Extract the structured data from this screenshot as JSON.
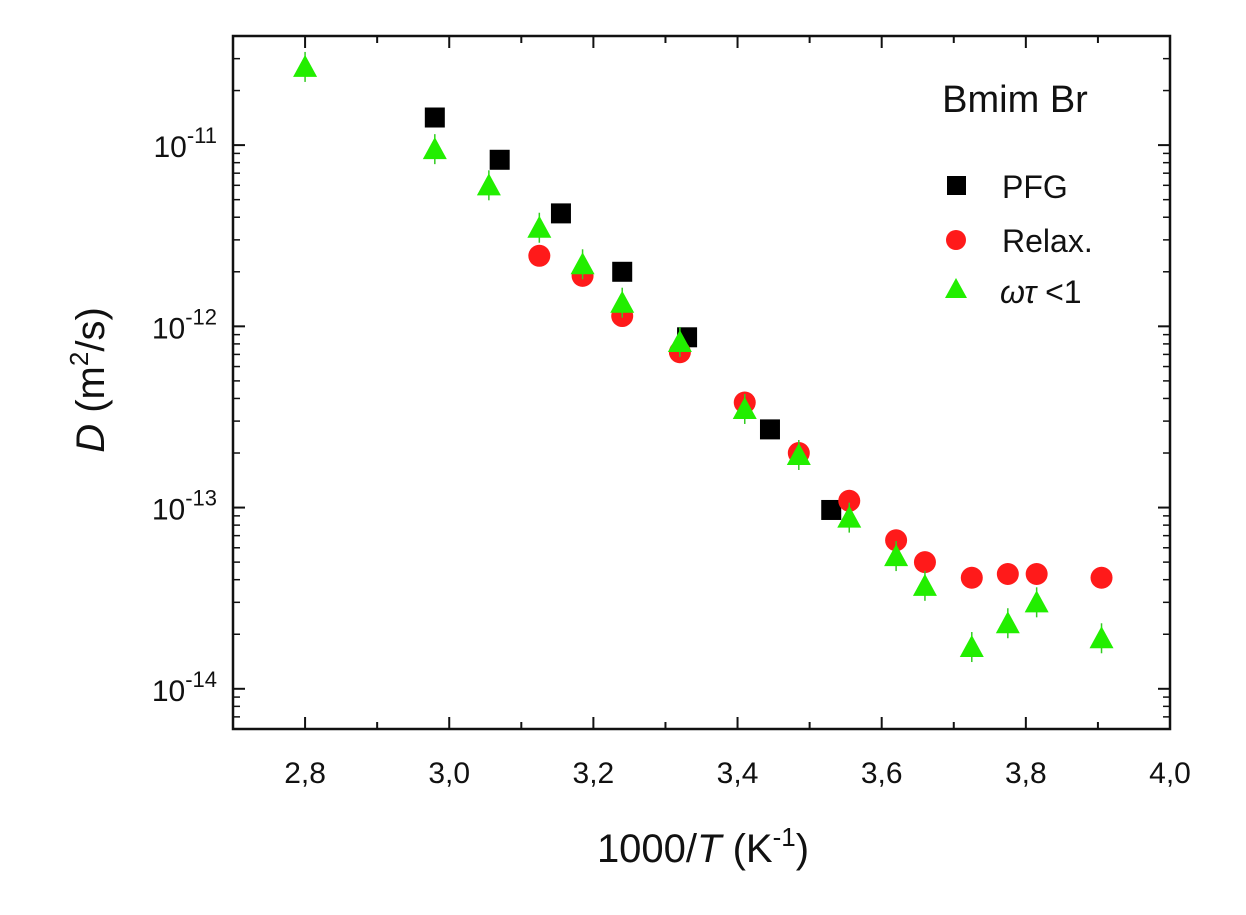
{
  "chart_data": {
    "type": "scatter",
    "annotation": "Bmim Br",
    "xlabel": {
      "prefix": "1000/",
      "italic": "T",
      "unit_open": " (K",
      "unit_sup": "-1",
      "unit_close": ")"
    },
    "ylabel": {
      "italic": "D",
      "unit_open": " (m",
      "unit_sup": "2",
      "unit_close": "/s)"
    },
    "x_scale": "linear",
    "y_scale": "log",
    "xlim": [
      2.7,
      4.0
    ],
    "ylim": [
      6e-15,
      4e-11
    ],
    "x_ticks": [
      {
        "value": 2.8,
        "label": "2,8"
      },
      {
        "value": 3.0,
        "label": "3,0"
      },
      {
        "value": 3.2,
        "label": "3,2"
      },
      {
        "value": 3.4,
        "label": "3,4"
      },
      {
        "value": 3.6,
        "label": "3,6"
      },
      {
        "value": 3.8,
        "label": "3,8"
      },
      {
        "value": 4.0,
        "label": "4,0"
      }
    ],
    "y_ticks": [
      {
        "value": 1e-11,
        "base": "10",
        "exp": "-11"
      },
      {
        "value": 1e-12,
        "base": "10",
        "exp": "-12"
      },
      {
        "value": 1e-13,
        "base": "10",
        "exp": "-13"
      },
      {
        "value": 1e-14,
        "base": "10",
        "exp": "-14"
      }
    ],
    "grid": false,
    "legend_position": "top-right",
    "series": [
      {
        "name": "PFG",
        "marker": "square",
        "color": "#000000",
        "points": [
          {
            "x": 2.98,
            "y": 1.42e-11
          },
          {
            "x": 3.07,
            "y": 8.3e-12
          },
          {
            "x": 3.155,
            "y": 4.2e-12
          },
          {
            "x": 3.24,
            "y": 2e-12
          },
          {
            "x": 3.33,
            "y": 8.7e-13
          },
          {
            "x": 3.445,
            "y": 2.7e-13
          },
          {
            "x": 3.53,
            "y": 9.7e-14
          }
        ]
      },
      {
        "name": "Relax.",
        "marker": "circle",
        "color": "#ff1a1a",
        "points": [
          {
            "x": 3.125,
            "y": 2.45e-12
          },
          {
            "x": 3.185,
            "y": 1.9e-12
          },
          {
            "x": 3.24,
            "y": 1.14e-12
          },
          {
            "x": 3.32,
            "y": 7.2e-13
          },
          {
            "x": 3.41,
            "y": 3.8e-13
          },
          {
            "x": 3.485,
            "y": 2e-13
          },
          {
            "x": 3.555,
            "y": 1.09e-13
          },
          {
            "x": 3.62,
            "y": 6.6e-14
          },
          {
            "x": 3.66,
            "y": 5e-14
          },
          {
            "x": 3.725,
            "y": 4.1e-14
          },
          {
            "x": 3.775,
            "y": 4.3e-14
          },
          {
            "x": 3.815,
            "y": 4.3e-14
          },
          {
            "x": 3.905,
            "y": 4.1e-14
          }
        ]
      },
      {
        "name_symbols": "ωτ",
        "name_rest": " <1",
        "marker": "triangle",
        "color": "#22ee00",
        "points": [
          {
            "x": 2.8,
            "y": 2.7e-11
          },
          {
            "x": 2.98,
            "y": 9.5e-12
          },
          {
            "x": 3.055,
            "y": 6e-12
          },
          {
            "x": 3.125,
            "y": 3.5e-12
          },
          {
            "x": 3.185,
            "y": 2.2e-12
          },
          {
            "x": 3.24,
            "y": 1.35e-12
          },
          {
            "x": 3.32,
            "y": 8.2e-13
          },
          {
            "x": 3.41,
            "y": 3.5e-13
          },
          {
            "x": 3.485,
            "y": 1.95e-13
          },
          {
            "x": 3.555,
            "y": 8.8e-14
          },
          {
            "x": 3.62,
            "y": 5.4e-14
          },
          {
            "x": 3.66,
            "y": 3.7e-14
          },
          {
            "x": 3.725,
            "y": 1.7e-14
          },
          {
            "x": 3.775,
            "y": 2.3e-14
          },
          {
            "x": 3.815,
            "y": 3e-14
          },
          {
            "x": 3.905,
            "y": 1.9e-14
          }
        ]
      }
    ]
  }
}
